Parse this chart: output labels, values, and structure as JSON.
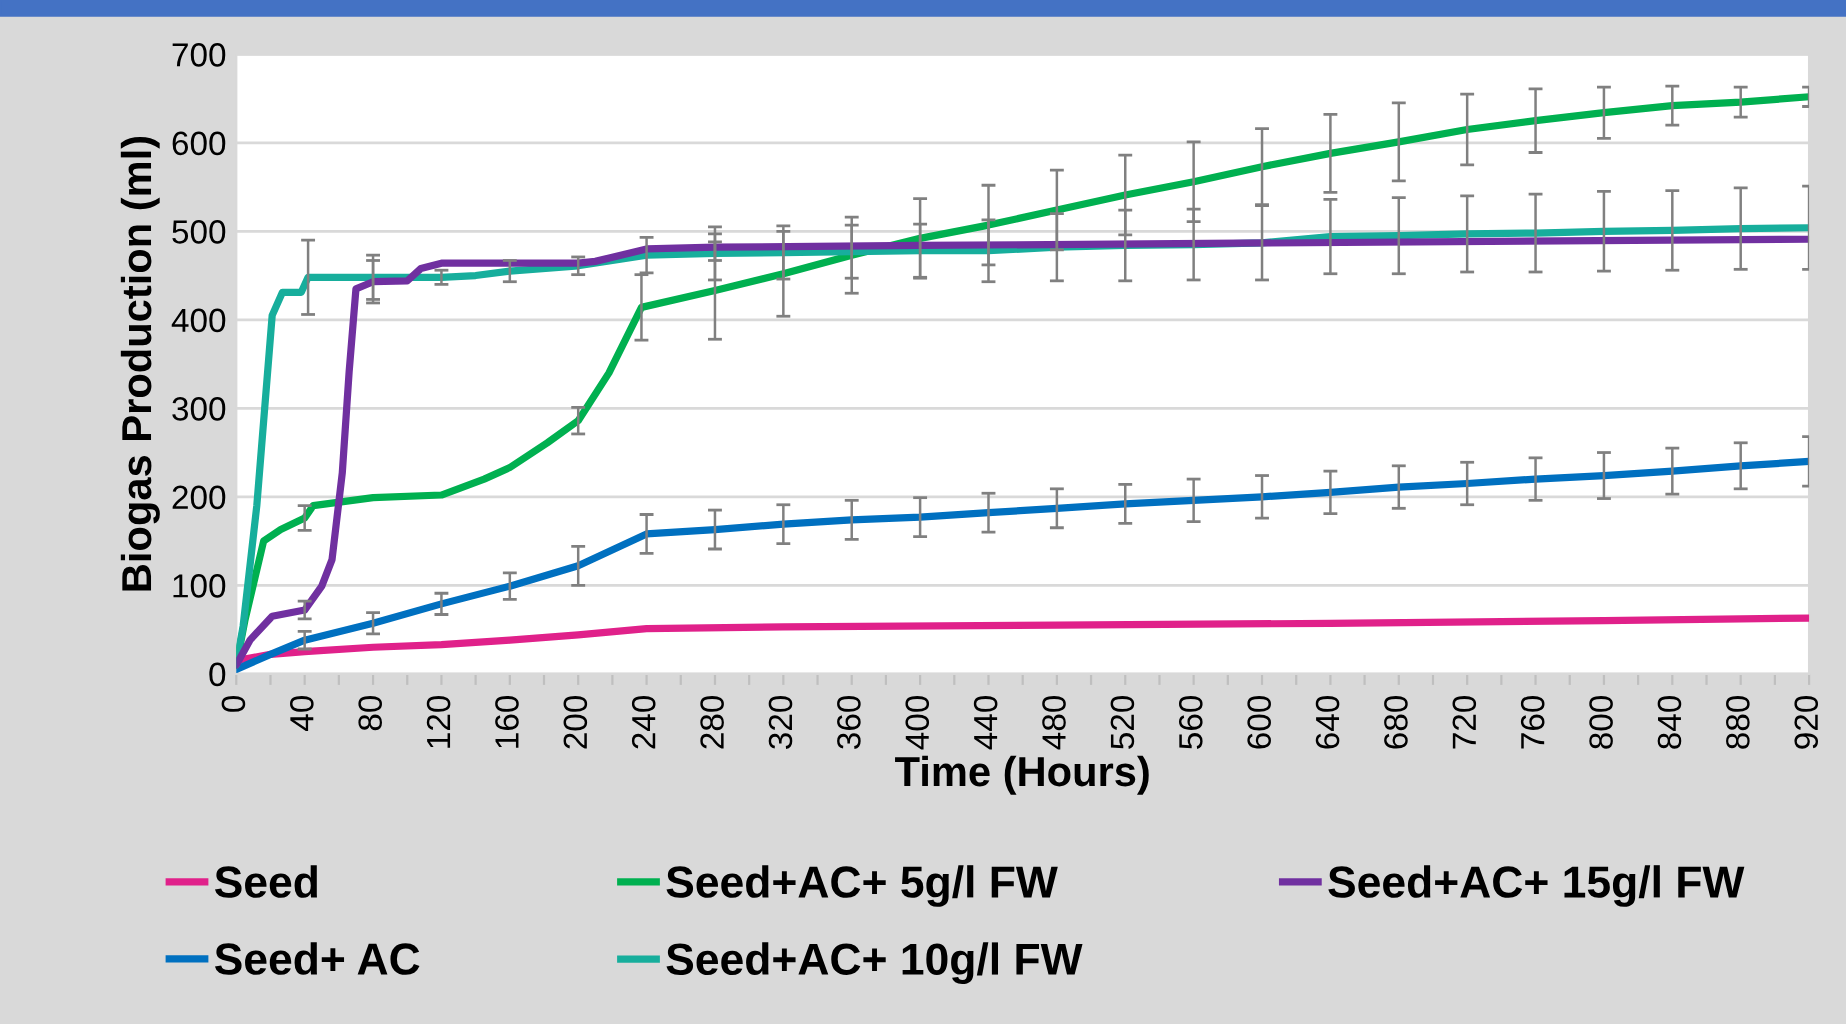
{
  "chart_data": {
    "type": "line",
    "xlabel": "Time (Hours)",
    "ylabel": "Biogas Production (ml)",
    "xlim": [
      0,
      920
    ],
    "ylim": [
      0,
      700
    ],
    "yticks": [
      0,
      100,
      200,
      300,
      400,
      500,
      600,
      700
    ],
    "xticks": [
      0,
      {
        "value": 20,
        "label": null
      },
      40,
      {
        "value": 60,
        "label": null
      },
      80,
      {
        "value": 100,
        "label": null
      },
      120,
      {
        "value": 140,
        "label": null
      },
      160,
      {
        "value": 180,
        "label": null
      },
      200,
      {
        "value": 220,
        "label": null
      },
      240,
      {
        "value": 260,
        "label": null
      },
      280,
      {
        "value": 300,
        "label": null
      },
      320,
      {
        "value": 340,
        "label": null
      },
      360,
      {
        "value": 380,
        "label": null
      },
      400,
      {
        "value": 420,
        "label": null
      },
      440,
      {
        "value": 460,
        "label": null
      },
      480,
      {
        "value": 500,
        "label": null
      },
      520,
      {
        "value": 540,
        "label": null
      },
      560,
      {
        "value": 580,
        "label": null
      },
      600,
      {
        "value": 620,
        "label": null
      },
      640,
      {
        "value": 660,
        "label": null
      },
      680,
      {
        "value": 700,
        "label": null
      },
      720,
      {
        "value": 740,
        "label": null
      },
      760,
      {
        "value": 780,
        "label": null
      },
      800,
      {
        "value": 820,
        "label": null
      },
      840,
      {
        "value": 860,
        "label": null
      },
      880,
      {
        "value": 900,
        "label": null
      },
      920
    ],
    "grid": "y",
    "legend": "bottom",
    "marker": "none",
    "line_style": "solid",
    "series": [
      {
        "name": "Seed",
        "color": "#e0218a",
        "x": [
          0,
          20,
          40,
          80,
          120,
          160,
          200,
          240,
          320,
          480,
          640,
          800,
          920
        ],
        "values": [
          15,
          22,
          25,
          30,
          33,
          38,
          44,
          51,
          53,
          55,
          57,
          60,
          63
        ]
      },
      {
        "name": "Seed+ AC",
        "color": "#0070c0",
        "x": [
          0,
          20,
          40,
          80,
          120,
          160,
          200,
          240,
          280,
          320,
          360,
          400,
          440,
          480,
          520,
          560,
          600,
          640,
          680,
          720,
          760,
          800,
          840,
          880,
          920
        ],
        "values": [
          5,
          22,
          38,
          57,
          79,
          99,
          122,
          158,
          163,
          169,
          174,
          177,
          182,
          187,
          192,
          196,
          200,
          205,
          211,
          215,
          220,
          224,
          229,
          235,
          240
        ],
        "errors": [
          null,
          null,
          10,
          12,
          12,
          15,
          22,
          22,
          22,
          22,
          22,
          22,
          22,
          22,
          22,
          24,
          24,
          24,
          24,
          24,
          24,
          26,
          26,
          26,
          28
        ]
      },
      {
        "name": "Seed+AC+ 5g/l FW",
        "color": "#00b050",
        "x": [
          0,
          5,
          16,
          26,
          40,
          45,
          80,
          120,
          145,
          160,
          182,
          200,
          218,
          237,
          280,
          320,
          360,
          400,
          440,
          480,
          520,
          560,
          600,
          640,
          680,
          720,
          760,
          800,
          840,
          880,
          920
        ],
        "values": [
          10,
          60,
          150,
          163,
          176,
          190,
          199,
          202,
          220,
          233,
          261,
          286,
          340,
          414,
          433,
          452,
          473,
          492,
          507,
          524,
          541,
          556,
          573,
          588,
          601,
          615,
          625,
          634,
          642,
          646,
          652
        ],
        "errors": [
          null,
          null,
          null,
          null,
          14,
          null,
          null,
          null,
          null,
          null,
          null,
          15,
          null,
          37,
          55,
          48,
          43,
          45,
          45,
          45,
          45,
          45,
          43,
          44,
          44,
          40,
          36,
          29,
          22,
          17,
          11
        ]
      },
      {
        "name": "Seed+AC+ 10g/l FW",
        "color": "#17ae9c",
        "x": [
          0,
          4,
          12,
          21,
          27,
          38,
          42,
          80,
          120,
          140,
          160,
          200,
          240,
          280,
          320,
          360,
          400,
          440,
          480,
          520,
          560,
          600,
          640,
          680,
          720,
          760,
          800,
          840,
          880,
          920
        ],
        "values": [
          10,
          54,
          190,
          405,
          431,
          431,
          448,
          448,
          448,
          450,
          455,
          461,
          473,
          475,
          476,
          477,
          478,
          478,
          482,
          484,
          485,
          487,
          494,
          495,
          497,
          498,
          500,
          501,
          503,
          504
        ],
        "errors": [
          null,
          null,
          null,
          null,
          null,
          null,
          42,
          25,
          8,
          null,
          12,
          10,
          20,
          30,
          30,
          30,
          30,
          35,
          38,
          40,
          40,
          42,
          42,
          43,
          43,
          44,
          45,
          45,
          46,
          47
        ]
      },
      {
        "name": "Seed+AC+ 15g/l FW",
        "color": "#7030a0",
        "x": [
          0,
          8,
          21,
          40,
          50,
          56,
          62,
          66,
          70,
          80,
          100,
          108,
          120,
          200,
          210,
          240,
          280,
          400,
          920
        ],
        "values": [
          10,
          38,
          65,
          72,
          99,
          129,
          227,
          341,
          435,
          443,
          444,
          458,
          464,
          464,
          466,
          480,
          482,
          484,
          491
        ],
        "errors": [
          null,
          null,
          null,
          10,
          null,
          null,
          null,
          null,
          null,
          24,
          null,
          null,
          null,
          null,
          null,
          null,
          15,
          null,
          null
        ]
      }
    ]
  }
}
